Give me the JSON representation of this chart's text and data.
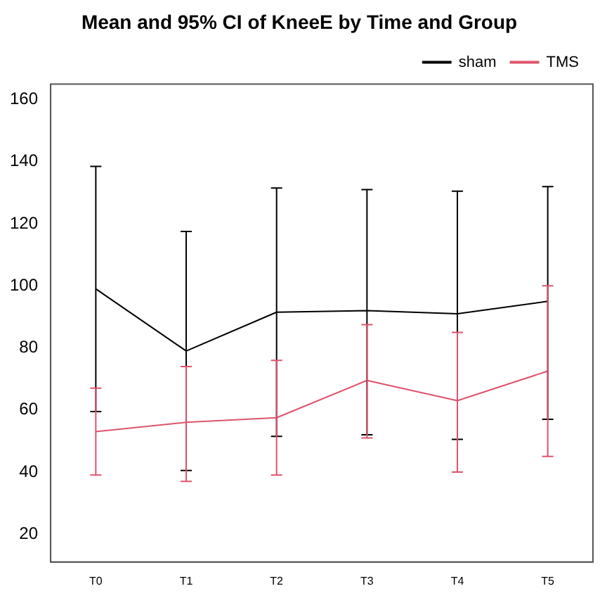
{
  "chart_data": {
    "type": "line",
    "title": "Mean and 95% CI of KneeE by Time and Group",
    "categories": [
      "T0",
      "T1",
      "T2",
      "T3",
      "T4",
      "T5"
    ],
    "series": [
      {
        "name": "sham",
        "color": "#000000",
        "values": [
          99,
          79,
          91.5,
          92,
          91,
          95
        ],
        "errors": [
          [
            59.5,
            138.5
          ],
          [
            40.5,
            117.5
          ],
          [
            51.5,
            131.5
          ],
          [
            52,
            131
          ],
          [
            50.5,
            130.5
          ],
          [
            57,
            132
          ]
        ]
      },
      {
        "name": "TMS",
        "color": "#df536b",
        "values": [
          53,
          56,
          57.5,
          69.5,
          63,
          72.5
        ],
        "errors": [
          [
            39,
            67
          ],
          [
            37,
            74
          ],
          [
            39,
            76
          ],
          [
            51,
            87.5
          ],
          [
            40,
            85
          ],
          [
            45,
            100
          ]
        ]
      }
    ],
    "ylim": [
      11,
      165
    ],
    "yticks": [
      20,
      40,
      60,
      80,
      100,
      120,
      140,
      160
    ],
    "grid": false,
    "legend": "top right",
    "marker": "none",
    "line_style": "solid"
  }
}
